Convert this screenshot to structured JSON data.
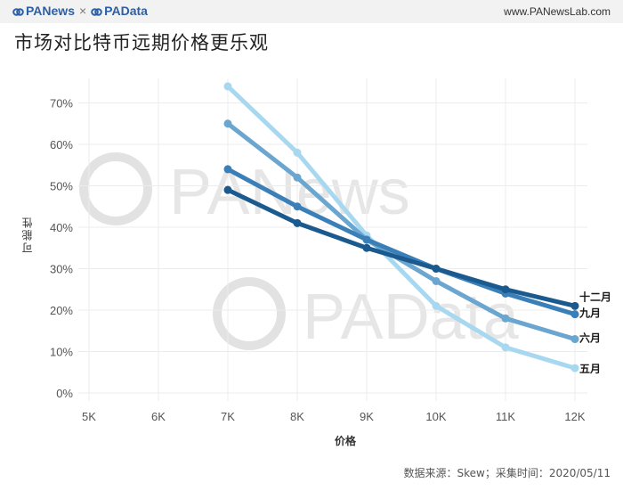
{
  "header": {
    "brand_left": "PANews",
    "separator": "×",
    "brand_right": "PAData",
    "site": "www.PANewsLab.com"
  },
  "title": "市场对比特币远期价格更乐观",
  "source": "数据来源：Skew；采集时间：2020/05/11",
  "watermarks": [
    "PANews",
    "PAData"
  ],
  "colors": {
    "series": [
      "#a8d8f0",
      "#6aa6cf",
      "#3a7fb8",
      "#1a5a8e"
    ],
    "header_bg": "#f2f2f2",
    "brand": "#2d5fa3"
  },
  "chart_data": {
    "type": "line",
    "xlabel": "价格",
    "ylabel": "可能性",
    "x": [
      "5K",
      "6K",
      "7K",
      "8K",
      "9K",
      "10K",
      "11K",
      "12K"
    ],
    "y_ticks": [
      "0%",
      "10%",
      "20%",
      "30%",
      "40%",
      "50%",
      "60%",
      "70%"
    ],
    "ylim": [
      0,
      75
    ],
    "grid": true,
    "series": [
      {
        "name": "五月",
        "x": [
          "7K",
          "8K",
          "9K",
          "10K",
          "11K",
          "12K"
        ],
        "values": [
          74,
          58,
          38,
          21,
          11,
          6
        ]
      },
      {
        "name": "六月",
        "x": [
          "7K",
          "8K",
          "9K",
          "10K",
          "11K",
          "12K"
        ],
        "values": [
          65,
          52,
          37,
          27,
          18,
          13
        ]
      },
      {
        "name": "九月",
        "x": [
          "7K",
          "8K",
          "9K",
          "10K",
          "11K",
          "12K"
        ],
        "values": [
          54,
          45,
          37,
          30,
          24,
          19
        ]
      },
      {
        "name": "十二月",
        "x": [
          "7K",
          "8K",
          "9K",
          "10K",
          "11K",
          "12K"
        ],
        "values": [
          49,
          41,
          35,
          30,
          25,
          21
        ]
      }
    ]
  }
}
